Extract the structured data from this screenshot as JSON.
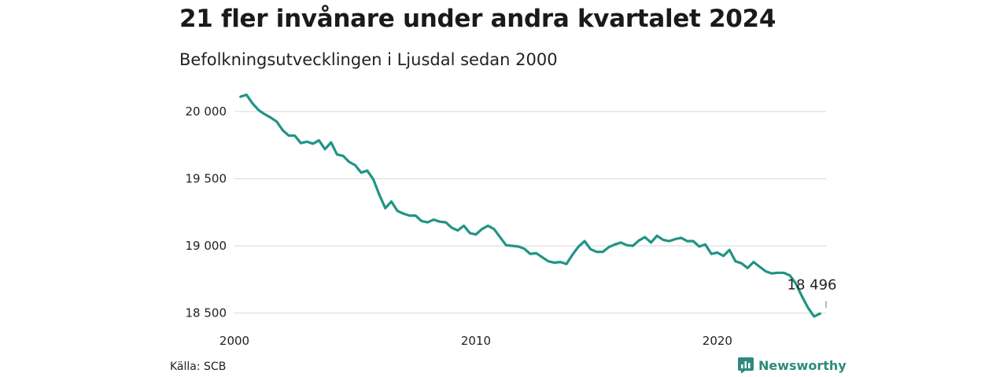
{
  "header": {
    "title": "21 fler invånare under andra kvartalet 2024",
    "subtitle": "Befolkningsutvecklingen i Ljusdal sedan 2000"
  },
  "footer": {
    "source": "Källa: SCB",
    "brand": "Newsworthy",
    "brand_icon": "bar-chart-icon"
  },
  "colors": {
    "line": "#1f9486",
    "grid": "#dddddd",
    "text": "#222222",
    "brand": "#2d8a7e"
  },
  "chart_data": {
    "type": "line",
    "title": "21 fler invånare under andra kvartalet 2024",
    "subtitle": "Befolkningsutvecklingen i Ljusdal sedan 2000",
    "xlabel": "",
    "ylabel": "",
    "x_range": [
      2000,
      2024.5
    ],
    "ylim": [
      18480,
      20140
    ],
    "grid": true,
    "legend": "none",
    "x_ticks": [
      {
        "value": 2000,
        "label": "2000"
      },
      {
        "value": 2010,
        "label": "2010"
      },
      {
        "value": 2020,
        "label": "2020"
      }
    ],
    "y_ticks": [
      {
        "value": 18500,
        "label": "18 500"
      },
      {
        "value": 19000,
        "label": "19 000"
      },
      {
        "value": 19500,
        "label": "19 500"
      },
      {
        "value": 20000,
        "label": "20 000"
      }
    ],
    "annotation": {
      "x": 2024.5,
      "y": 18496,
      "label": "18 496"
    },
    "series": [
      {
        "x_start": 2000.25,
        "x_step": 0.25,
        "values": [
          20110,
          20125,
          20060,
          20010,
          19980,
          19955,
          19925,
          19860,
          19820,
          19820,
          19765,
          19775,
          19760,
          19785,
          19720,
          19770,
          19680,
          19670,
          19625,
          19600,
          19545,
          19560,
          19495,
          19380,
          19280,
          19330,
          19260,
          19240,
          19225,
          19225,
          19185,
          19175,
          19195,
          19180,
          19175,
          19135,
          19115,
          19150,
          19095,
          19085,
          19125,
          19150,
          19125,
          19065,
          19005,
          19000,
          18995,
          18980,
          18940,
          18945,
          18915,
          18885,
          18875,
          18880,
          18865,
          18935,
          18995,
          19035,
          18975,
          18955,
          18955,
          18990,
          19010,
          19025,
          19005,
          19000,
          19040,
          19065,
          19025,
          19075,
          19045,
          19035,
          19050,
          19060,
          19035,
          19035,
          18995,
          19010,
          18940,
          18950,
          18925,
          18970,
          18885,
          18870,
          18835,
          18880,
          18845,
          18810,
          18795,
          18800,
          18800,
          18780,
          18720,
          18625,
          18540,
          18475,
          18496
        ]
      }
    ]
  }
}
